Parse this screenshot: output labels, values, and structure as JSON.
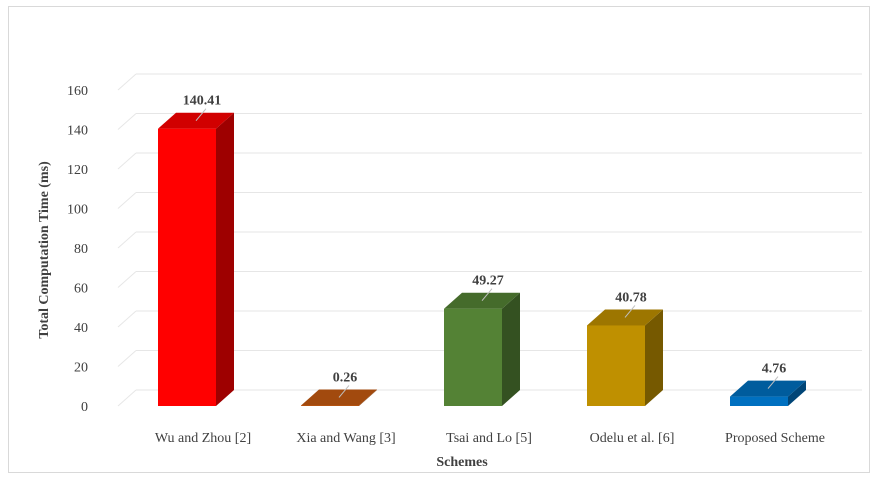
{
  "chart_data": {
    "type": "bar",
    "style": "3d-column",
    "categories": [
      "Wu and Zhou [2]",
      "Xia and Wang [3]",
      "Tsai and Lo [5]",
      "Odelu et al. [6]",
      "Proposed Scheme"
    ],
    "values": [
      140.41,
      0.26,
      49.27,
      40.78,
      4.76
    ],
    "value_labels": [
      "140.41",
      "0.26",
      "49.27",
      "40.78",
      "4.76"
    ],
    "colors": [
      "#ff0000",
      "#c55a11",
      "#548235",
      "#bf9000",
      "#0070c0"
    ],
    "xlabel": "Schemes",
    "ylabel": "Total Computation Time (ms)",
    "ylim": [
      0,
      160
    ],
    "yticks": [
      0,
      20,
      40,
      60,
      80,
      100,
      120,
      140,
      160
    ],
    "grid": true,
    "legend": "none"
  }
}
